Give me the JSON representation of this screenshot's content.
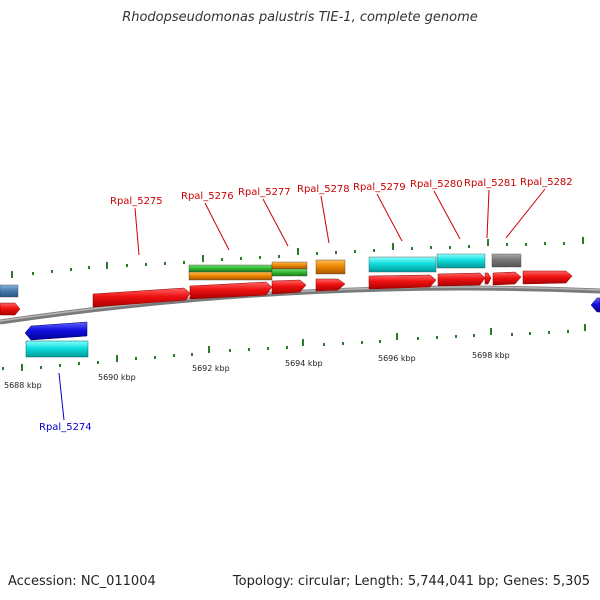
{
  "title": "Rhodopseudomonas palustris TIE-1, complete genome",
  "footer": {
    "accession": "Accession: NC_011004",
    "summary": "Topology: circular; Length: 5,744,041 bp; Genes: 5,305"
  },
  "colors": {
    "forward_label": "#cc0000",
    "reverse_label": "#0000cc",
    "backbone": "#808080",
    "tick": "#2a7a2a",
    "red_gene": "#ee1111",
    "cyan_gene": "#11dddd",
    "orange_gene": "#ee8800",
    "green_gene": "#33bb33",
    "blue_gene": "#1111dd",
    "gray_gene": "#777777",
    "steel_gene": "#4a7fb0"
  },
  "scale_labels": [
    "5688 kbp",
    "5690 kbp",
    "5692 kbp",
    "5694 kbp",
    "5696 kbp",
    "5698 kbp"
  ],
  "gene_labels": [
    "Rpal_5274",
    "Rpal_5275",
    "Rpal_5276",
    "Rpal_5277",
    "Rpal_5278",
    "Rpal_5279",
    "Rpal_5280",
    "Rpal_5281",
    "Rpal_5282"
  ]
}
